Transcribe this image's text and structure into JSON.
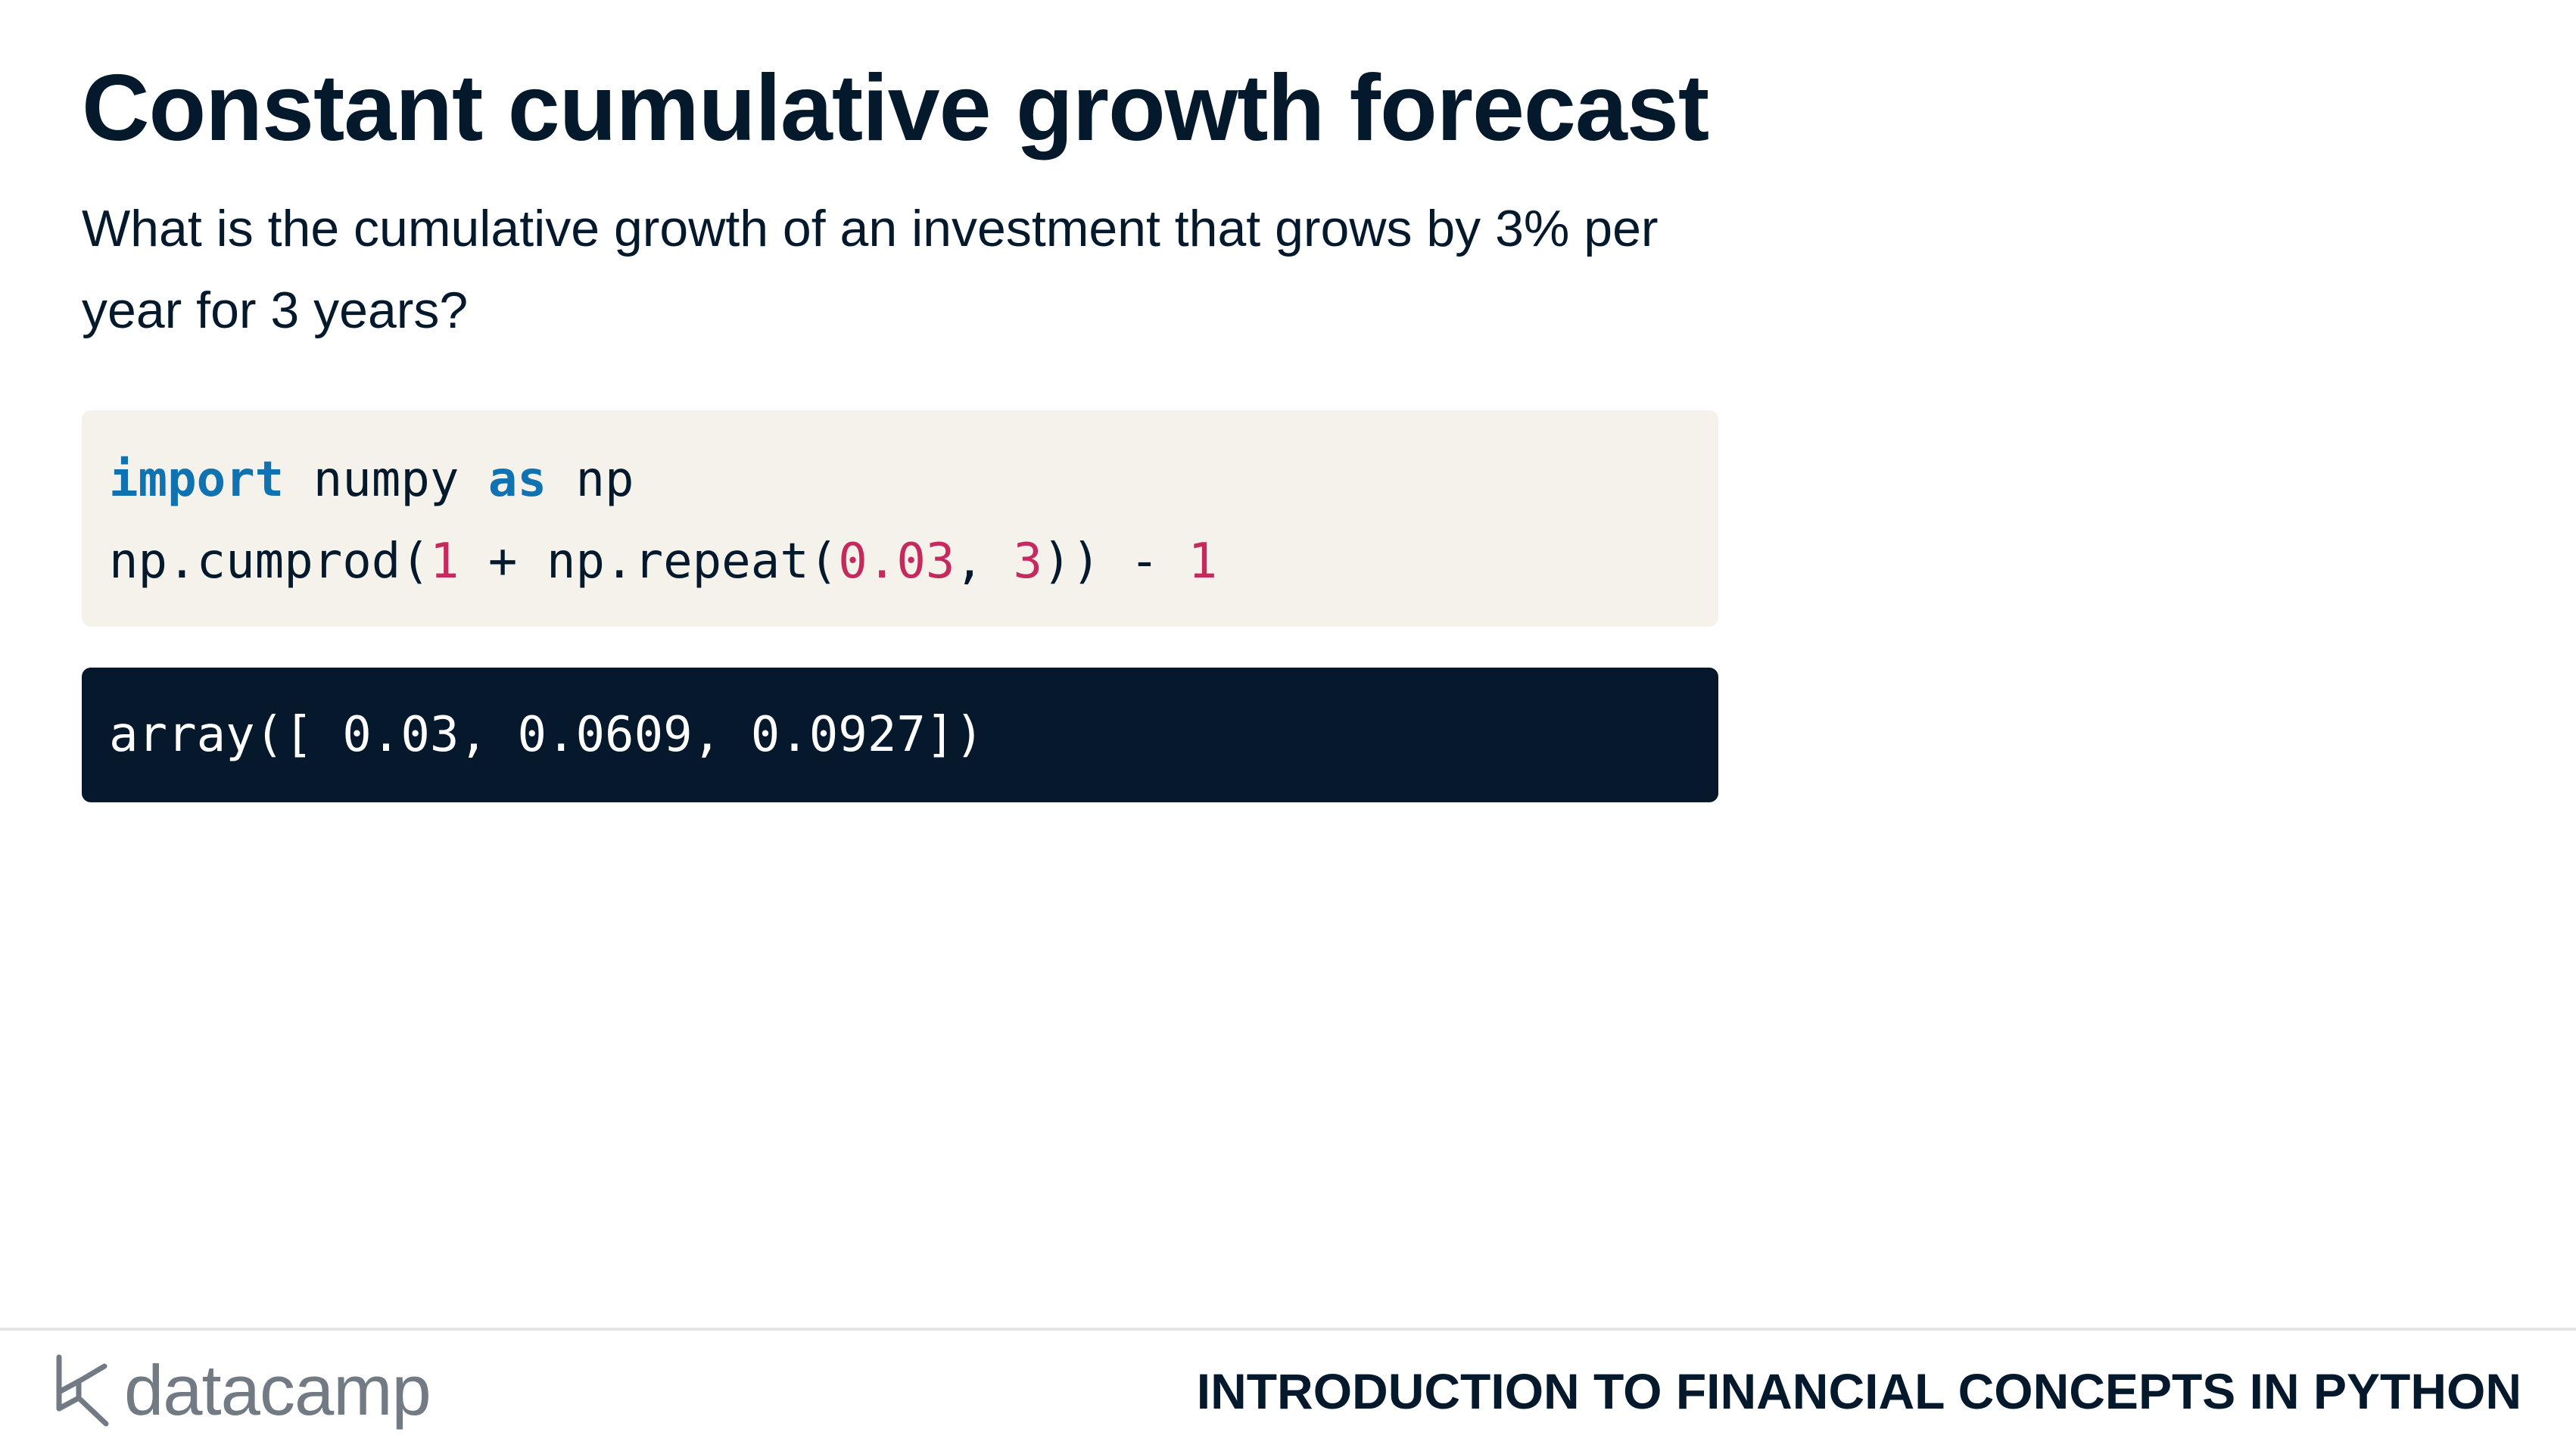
{
  "slide": {
    "title": "Constant cumulative growth forecast",
    "question": "What is the cumulative growth of an investment that grows by 3% per year for 3 years?"
  },
  "code": {
    "line1": {
      "kw_import": "import",
      "module": " numpy ",
      "kw_as": "as",
      "alias": " np"
    },
    "line2": {
      "call_start": "np.cumprod(",
      "one_a": "1",
      "mid": " + np.repeat(",
      "rate": "0.03",
      "sep": ", ",
      "years": "3",
      "close": ")) - ",
      "one_b": "1"
    }
  },
  "output": {
    "text": "array([ 0.03, 0.0609, 0.0927])"
  },
  "footer": {
    "logo_text": "datacamp",
    "course_name": "INTRODUCTION TO FINANCIAL CONCEPTS IN PYTHON"
  },
  "colors": {
    "text_dark": "#05192d",
    "code_bg": "#f5f2ec",
    "output_bg": "#06192c",
    "keyword": "#1072b0",
    "number": "#c6295d",
    "logo_gray": "#727a84"
  }
}
